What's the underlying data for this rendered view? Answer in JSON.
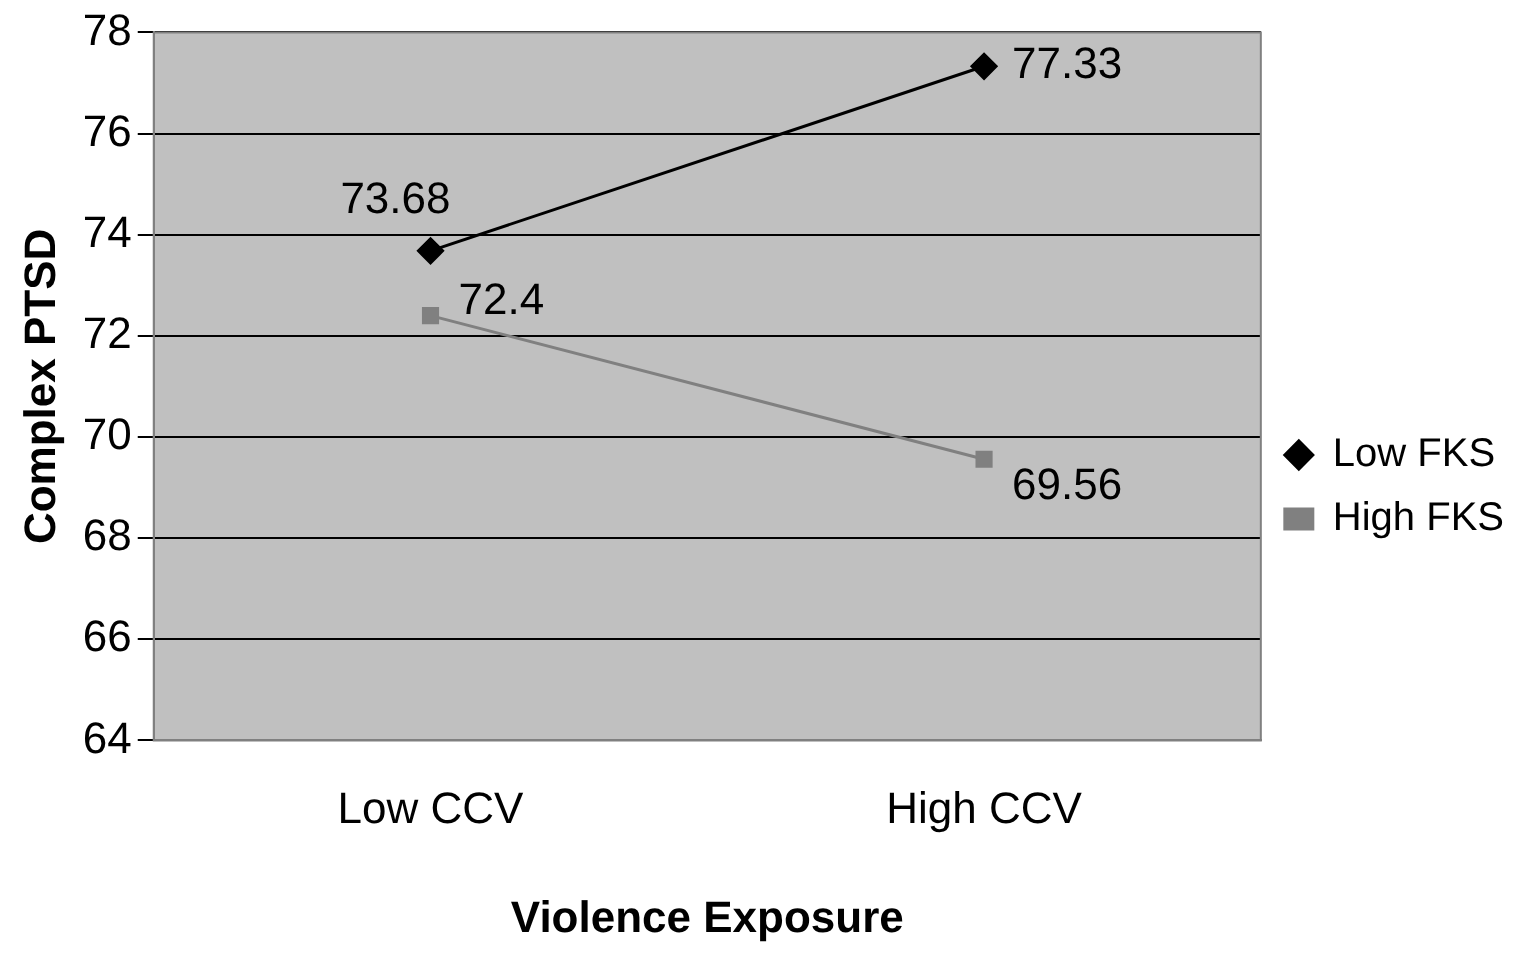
{
  "chart_data": {
    "type": "line",
    "xlabel": "Violence Exposure",
    "ylabel": "Complex PTSD",
    "categories": [
      "Low CCV",
      "High CCV"
    ],
    "series": [
      {
        "name": "Low FKS",
        "color": "#000000",
        "marker": "diamond",
        "values": [
          73.68,
          77.33
        ]
      },
      {
        "name": "High FKS",
        "color": "#808080",
        "marker": "square",
        "values": [
          72.4,
          69.56
        ]
      }
    ],
    "ylim": [
      64,
      78
    ],
    "yticks": [
      64,
      66,
      68,
      70,
      72,
      74,
      76,
      78
    ],
    "grid": "y",
    "legend": "right",
    "data_labels": true
  }
}
